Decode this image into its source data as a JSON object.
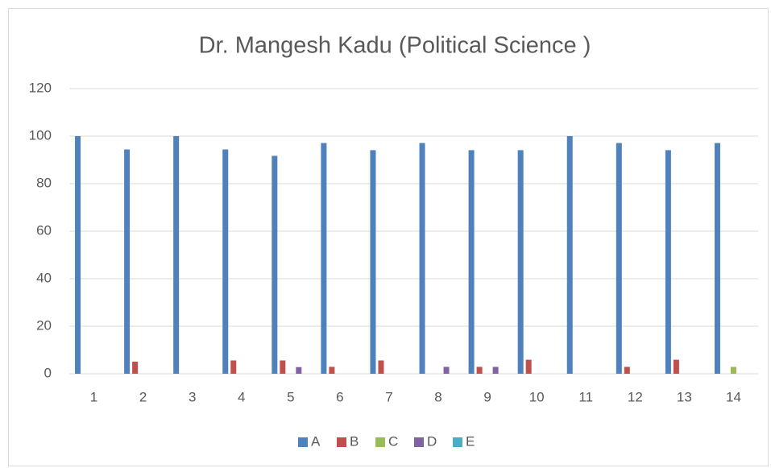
{
  "chart_data": {
    "type": "bar",
    "title": "Dr. Mangesh Kadu (Political Science )",
    "categories": [
      "1",
      "2",
      "3",
      "4",
      "5",
      "6",
      "7",
      "8",
      "9",
      "10",
      "11",
      "12",
      "13",
      "14"
    ],
    "series": [
      {
        "name": "A",
        "color": "#4f81bd",
        "values": [
          100,
          94.4,
          100,
          94.4,
          91.7,
          97.1,
          94.1,
          97.1,
          94.1,
          94.1,
          100,
          97.1,
          94.1,
          97.1
        ]
      },
      {
        "name": "B",
        "color": "#c0504d",
        "values": [
          0,
          5.1,
          0,
          5.6,
          5.6,
          2.9,
          5.6,
          0,
          2.9,
          5.9,
          0,
          2.9,
          5.9,
          0
        ]
      },
      {
        "name": "C",
        "color": "#9bbb59",
        "values": [
          0,
          0,
          0,
          0,
          0,
          0,
          0,
          0,
          0,
          0,
          0,
          0,
          0,
          2.9
        ]
      },
      {
        "name": "D",
        "color": "#8064a2",
        "values": [
          0,
          0,
          0,
          0,
          2.8,
          0,
          0,
          2.9,
          2.9,
          0,
          0,
          0,
          0,
          0
        ]
      },
      {
        "name": "E",
        "color": "#4bacc6",
        "values": [
          0,
          0,
          0,
          0,
          0,
          0,
          0,
          0,
          0,
          0,
          0,
          0,
          0,
          0
        ]
      }
    ],
    "ylim": [
      0,
      120
    ],
    "yticks": [
      0,
      20,
      40,
      60,
      80,
      100,
      120
    ],
    "grid": true,
    "legend": "bottom"
  }
}
